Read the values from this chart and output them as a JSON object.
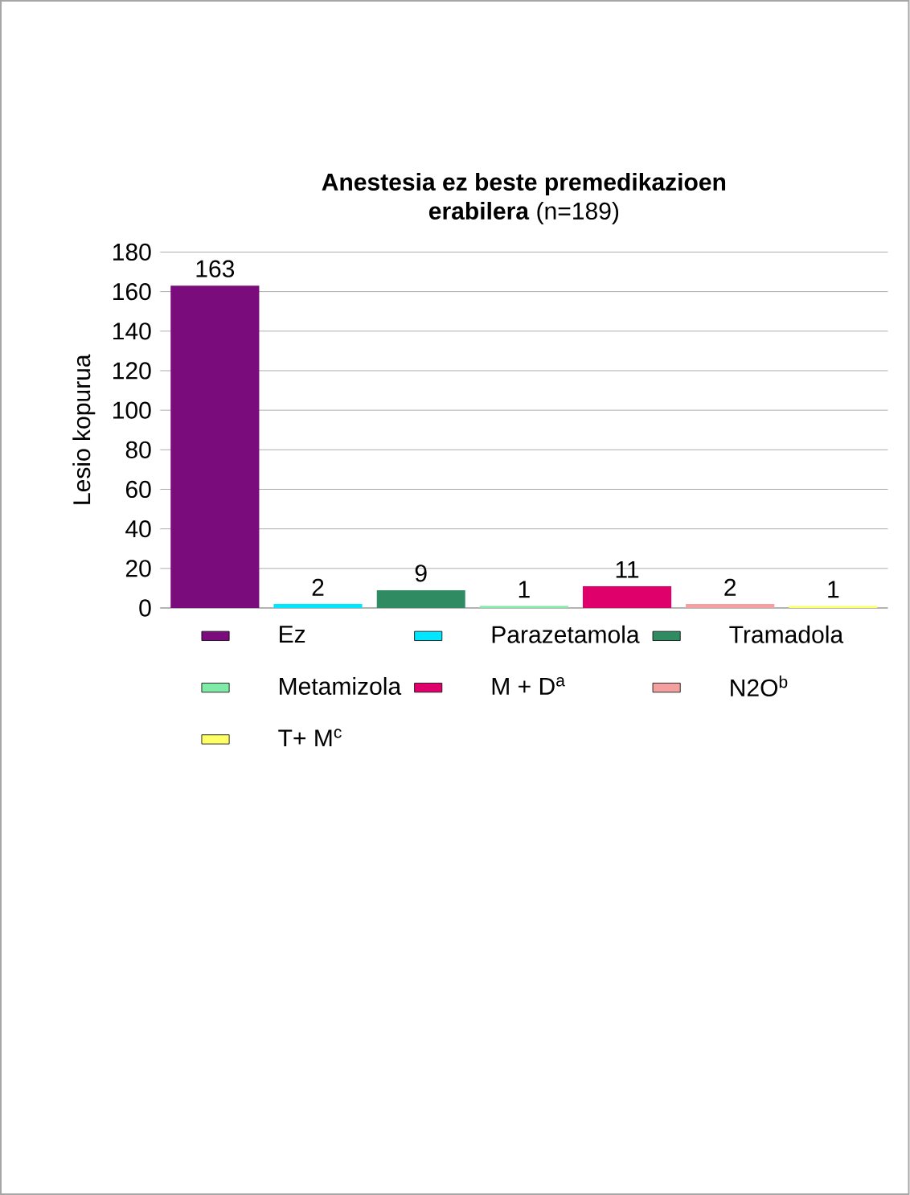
{
  "chart_data": {
    "type": "bar",
    "title": "**Anestesia ez beste premedikazioen erabilera** (n=189)",
    "ylabel": "Lesio kopurua",
    "categories": [
      null
    ],
    "series": [
      {
        "name": "Ez",
        "color": "#7b0c7b",
        "values": [
          163
        ]
      },
      {
        "name": "Parazetamola",
        "color": "#00e6ff",
        "values": [
          2
        ]
      },
      {
        "name": "Tramadola",
        "color": "#2e8b62",
        "values": [
          9
        ]
      },
      {
        "name": "Metamizola",
        "color": "#80eaa8",
        "values": [
          1
        ]
      },
      {
        "name": "M + D$^{a}$",
        "color": "#e0006c",
        "values": [
          11
        ]
      },
      {
        "name": "N2O$^{b}$",
        "color": "#f4a0a0",
        "values": [
          2
        ]
      },
      {
        "name": "T+ M$^{c}$",
        "color": "#ffff66",
        "values": [
          1
        ]
      }
    ],
    "ylim": [
      0,
      180
    ],
    "yticks": [
      0,
      20,
      40,
      60,
      80,
      100,
      120,
      140,
      160,
      180
    ],
    "grid": "y",
    "legend": "bottom",
    "data_labels": true
  }
}
